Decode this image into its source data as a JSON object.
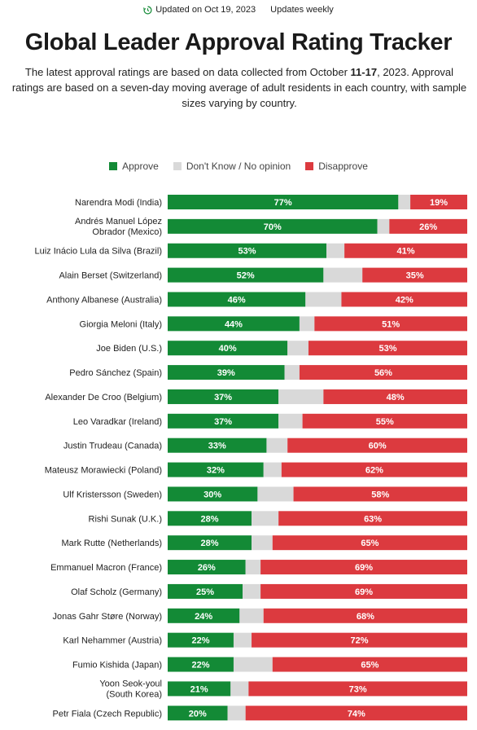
{
  "header": {
    "updated": "Updated on Oct 19, 2023",
    "frequency": "Updates weekly",
    "title": "Global Leader Approval Rating Tracker",
    "subtitle_pre": "The latest approval ratings are based on data collected from October ",
    "subtitle_dates": "11-17",
    "subtitle_post": ", 2023. Approval ratings are based on a seven-day moving average of adult residents in each country, with sample sizes varying by country."
  },
  "icons": {
    "updated": "refresh-clock-icon"
  },
  "colors": {
    "approve": "#138a36",
    "dontknow": "#d9d9d9",
    "disapprove": "#dc3a3f"
  },
  "chart_data": {
    "type": "bar",
    "orientation": "horizontal",
    "stacked": true,
    "legend": [
      "Approve",
      "Don't Know / No opinion",
      "Disapprove"
    ],
    "legend_position": "top",
    "unit": "%",
    "xlim": [
      0,
      100
    ],
    "categories": [
      "Narendra Modi (India)",
      "Andrés Manuel López Obrador (Mexico)",
      "Luiz Inácio Lula da Silva (Brazil)",
      "Alain Berset (Switzerland)",
      "Anthony Albanese (Australia)",
      "Giorgia Meloni (Italy)",
      "Joe Biden (U.S.)",
      "Pedro Sánchez (Spain)",
      "Alexander De Croo (Belgium)",
      "Leo Varadkar (Ireland)",
      "Justin Trudeau (Canada)",
      "Mateusz Morawiecki (Poland)",
      "Ulf Kristersson (Sweden)",
      "Rishi Sunak (U.K.)",
      "Mark Rutte (Netherlands)",
      "Emmanuel Macron (France)",
      "Olaf Scholz (Germany)",
      "Jonas Gahr Støre (Norway)",
      "Karl Nehammer (Austria)",
      "Fumio Kishida (Japan)",
      "Yoon Seok-youl (South Korea)",
      "Petr Fiala (Czech Republic)"
    ],
    "category_lines": [
      [
        "Narendra Modi (India)"
      ],
      [
        "Andrés Manuel López",
        "Obrador (Mexico)"
      ],
      [
        "Luiz Inácio Lula da Silva (Brazil)"
      ],
      [
        "Alain Berset (Switzerland)"
      ],
      [
        "Anthony Albanese (Australia)"
      ],
      [
        "Giorgia Meloni (Italy)"
      ],
      [
        "Joe Biden (U.S.)"
      ],
      [
        "Pedro Sánchez (Spain)"
      ],
      [
        "Alexander De Croo (Belgium)"
      ],
      [
        "Leo Varadkar (Ireland)"
      ],
      [
        "Justin Trudeau (Canada)"
      ],
      [
        "Mateusz Morawiecki (Poland)"
      ],
      [
        "Ulf Kristersson (Sweden)"
      ],
      [
        "Rishi Sunak (U.K.)"
      ],
      [
        "Mark Rutte (Netherlands)"
      ],
      [
        "Emmanuel Macron (France)"
      ],
      [
        "Olaf Scholz (Germany)"
      ],
      [
        "Jonas Gahr Støre (Norway)"
      ],
      [
        "Karl Nehammer (Austria)"
      ],
      [
        "Fumio Kishida (Japan)"
      ],
      [
        "Yoon Seok-youl",
        "(South Korea)"
      ],
      [
        "Petr Fiala (Czech Republic)"
      ]
    ],
    "series": [
      {
        "name": "Approve",
        "values": [
          77,
          70,
          53,
          52,
          46,
          44,
          40,
          39,
          37,
          37,
          33,
          32,
          30,
          28,
          28,
          26,
          25,
          24,
          22,
          22,
          21,
          20
        ]
      },
      {
        "name": "Don't Know / No opinion",
        "values": [
          4,
          4,
          6,
          13,
          12,
          5,
          7,
          5,
          15,
          8,
          7,
          6,
          12,
          9,
          7,
          5,
          6,
          8,
          6,
          13,
          6,
          6
        ]
      },
      {
        "name": "Disapprove",
        "values": [
          19,
          26,
          41,
          35,
          42,
          51,
          53,
          56,
          48,
          55,
          60,
          62,
          58,
          63,
          65,
          69,
          69,
          68,
          72,
          65,
          73,
          74
        ]
      }
    ]
  }
}
